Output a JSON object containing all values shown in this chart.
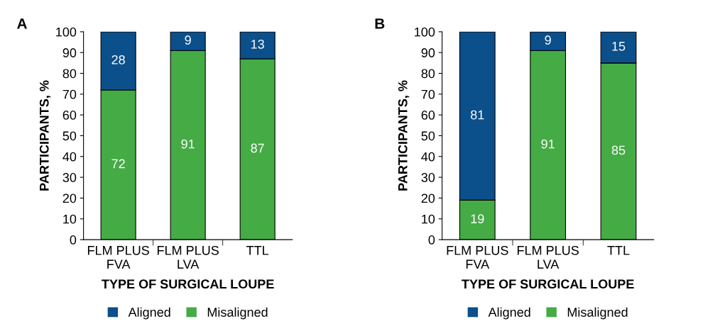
{
  "chart_data": [
    {
      "type": "bar",
      "title": "A",
      "xlabel": "TYPE OF SURGICAL LOUPE",
      "ylabel": "PARTICIPANTS, %",
      "categories": [
        "FLM PLUS\nFVA",
        "FLM PLUS\nLVA",
        "TTL"
      ],
      "stacked": true,
      "ylim": [
        0,
        100
      ],
      "yticks": [
        0,
        10,
        20,
        30,
        40,
        50,
        60,
        70,
        80,
        90,
        100
      ],
      "data_labels": true,
      "legend": "bottom",
      "grid": false,
      "series": [
        {
          "name": "Misaligned",
          "color": "#45ab45",
          "values": [
            72,
            91,
            87
          ]
        },
        {
          "name": "Aligned",
          "color": "#0b4f8b",
          "values": [
            28,
            9,
            13
          ]
        }
      ]
    },
    {
      "type": "bar",
      "title": "B",
      "xlabel": "TYPE OF SURGICAL LOUPE",
      "ylabel": "PARTICIPANTS, %",
      "categories": [
        "FLM PLUS\nFVA",
        "FLM PLUS\nLVA",
        "TTL"
      ],
      "stacked": true,
      "ylim": [
        0,
        100
      ],
      "yticks": [
        0,
        10,
        20,
        30,
        40,
        50,
        60,
        70,
        80,
        90,
        100
      ],
      "data_labels": true,
      "legend": "bottom",
      "grid": false,
      "series": [
        {
          "name": "Misaligned",
          "color": "#45ab45",
          "values": [
            19,
            91,
            85
          ]
        },
        {
          "name": "Aligned",
          "color": "#0b4f8b",
          "values": [
            81,
            9,
            15
          ]
        }
      ]
    }
  ]
}
